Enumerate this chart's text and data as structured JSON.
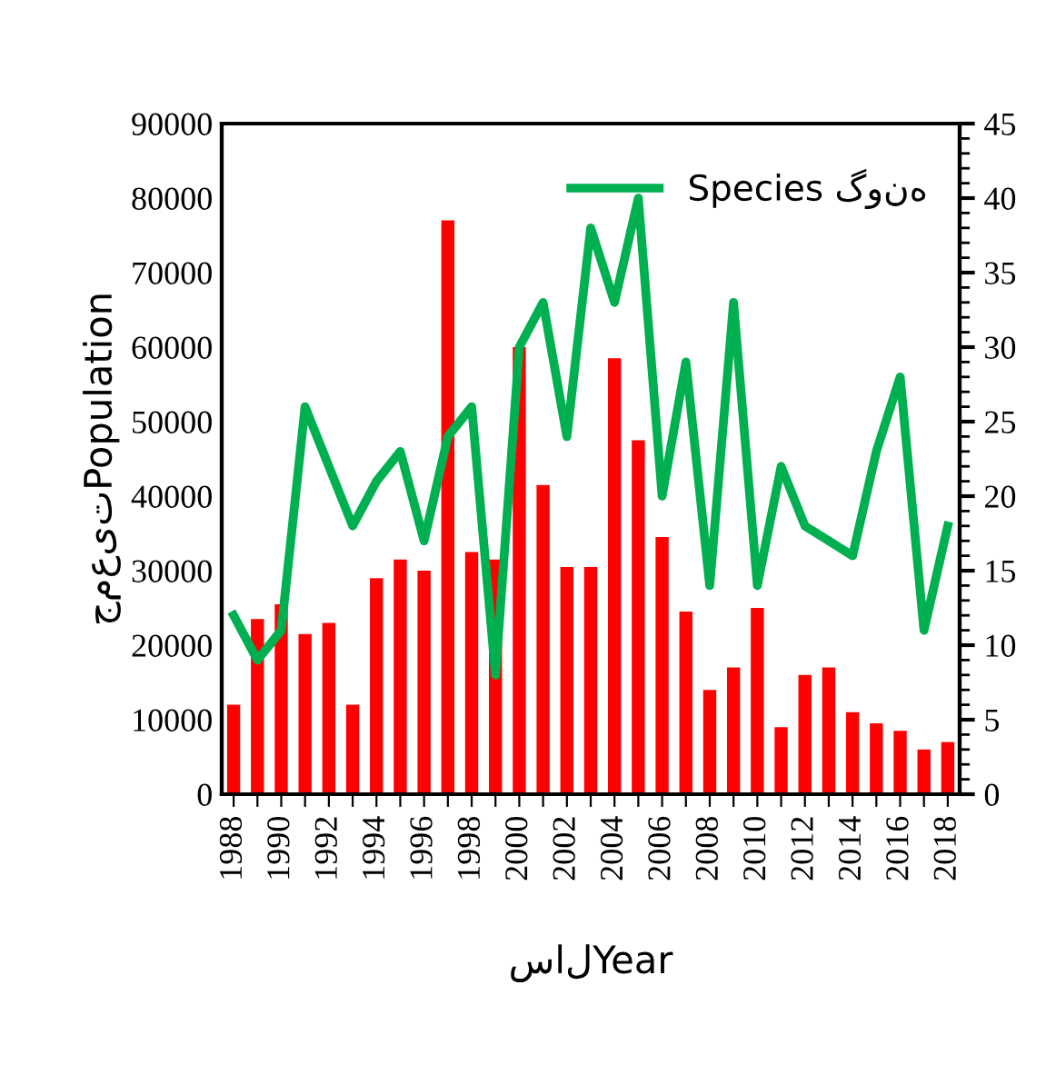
{
  "chart_data": {
    "type": "bar",
    "categories": [
      "1988",
      null,
      "1990",
      null,
      "1992",
      null,
      "1994",
      null,
      "1996",
      null,
      "1998",
      null,
      "2000",
      null,
      "2002",
      null,
      "2004",
      null,
      "2006",
      null,
      "2008",
      null,
      "2010",
      null,
      "2012",
      null,
      "2014",
      null,
      "2016",
      null,
      "2018"
    ],
    "series": [
      {
        "color": "#ff0000",
        "values": [
          12000,
          23500,
          25500,
          21500,
          23000,
          12000,
          29000,
          31500,
          30000,
          77000,
          32500,
          31500,
          60000,
          41500,
          30500,
          30500,
          58500,
          47500,
          34500,
          24500,
          14000,
          17000,
          25000,
          9000,
          16000,
          17000,
          11000,
          9500,
          8500,
          6000,
          7000
        ]
      },
      {
        "type": "line",
        "name": "Species گونه",
        "axis": "y2",
        "color": "#00b050",
        "values": [
          12,
          9,
          11,
          26,
          22,
          18,
          21,
          23,
          17,
          24,
          26,
          8,
          30,
          33,
          24,
          38,
          33,
          40,
          20,
          29,
          14,
          33,
          14,
          22,
          18,
          17,
          16,
          23,
          28,
          11,
          18
        ]
      }
    ],
    "xlabel": "سالYear",
    "ylabel": "جمعیتPopulation",
    "ylim": [
      0,
      90000
    ],
    "yticks": [
      0,
      10000,
      20000,
      30000,
      40000,
      50000,
      60000,
      70000,
      80000,
      90000
    ],
    "y2lim": [
      0,
      45
    ],
    "y2ticks": [
      0,
      5,
      10,
      15,
      20,
      25,
      30,
      35,
      40,
      45
    ],
    "legend": "top right",
    "grid": false,
    "marker": "none",
    "line_style": "solid"
  }
}
